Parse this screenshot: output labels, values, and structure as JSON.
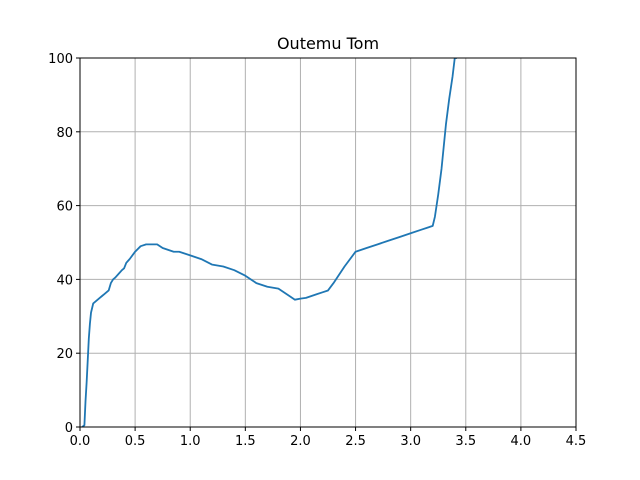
{
  "chart_data": {
    "type": "line",
    "title": "Outemu Tom",
    "xlabel": "",
    "ylabel": "",
    "xlim": [
      0,
      4.5
    ],
    "ylim": [
      0,
      100
    ],
    "grid": true,
    "x_ticks": [
      "0.0",
      "0.5",
      "1.0",
      "1.5",
      "2.0",
      "2.5",
      "3.0",
      "3.5",
      "4.0",
      "4.5"
    ],
    "y_ticks": [
      "0",
      "20",
      "40",
      "60",
      "80",
      "100"
    ],
    "series": [
      {
        "color": "#1f77b4",
        "x": [
          0.02,
          0.04,
          0.05,
          0.06,
          0.07,
          0.08,
          0.09,
          0.1,
          0.12,
          0.14,
          0.16,
          0.18,
          0.2,
          0.22,
          0.24,
          0.26,
          0.28,
          0.3,
          0.32,
          0.35,
          0.38,
          0.4,
          0.42,
          0.45,
          0.5,
          0.55,
          0.6,
          0.65,
          0.7,
          0.75,
          0.8,
          0.85,
          0.9,
          1.0,
          1.1,
          1.2,
          1.3,
          1.4,
          1.5,
          1.6,
          1.7,
          1.8,
          1.9,
          1.95,
          2.0,
          2.05,
          2.1,
          2.15,
          2.2,
          2.25,
          2.3,
          2.4,
          2.5,
          2.55,
          2.6,
          2.7,
          2.8,
          2.9,
          3.0,
          3.1,
          3.15,
          3.2,
          3.22,
          3.25,
          3.28,
          3.3,
          3.32,
          3.35,
          3.38,
          3.4,
          3.42
        ],
        "y": [
          0,
          0.5,
          7,
          12,
          18,
          24,
          28,
          31,
          33.5,
          34,
          34.5,
          35,
          35.5,
          36,
          36.5,
          37,
          39,
          40,
          40.5,
          41.5,
          42.5,
          43,
          44.5,
          45.5,
          47.5,
          49,
          49.5,
          49.5,
          49.5,
          48.5,
          48,
          47.5,
          47.5,
          46.5,
          45.5,
          44,
          43.5,
          42.5,
          41,
          39,
          38,
          37.5,
          35.5,
          34.5,
          34.8,
          35,
          35.5,
          36,
          36.5,
          37,
          39,
          43.5,
          47.5,
          48,
          48.5,
          49.5,
          50.5,
          51.5,
          52.5,
          53.5,
          54,
          54.5,
          57,
          63,
          70,
          76,
          82,
          89,
          95,
          100,
          100
        ]
      }
    ]
  }
}
